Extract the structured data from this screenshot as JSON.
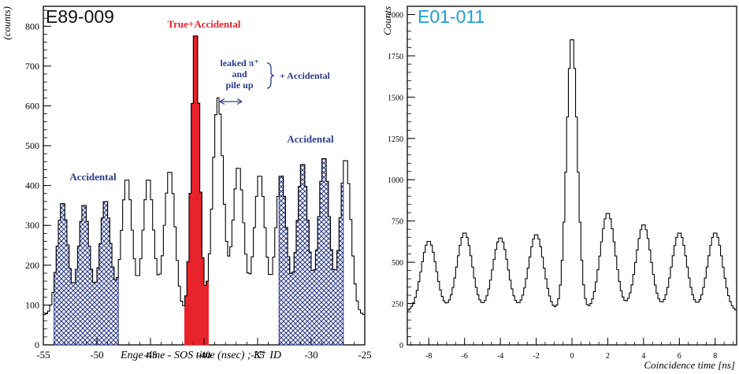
{
  "colors": {
    "frame": "#000000",
    "histogram": "#000000",
    "accidental_fill": "#2b3a8c",
    "true_fill": "#e8232b",
    "true_label": "#e8232b",
    "accidental_label": "#2b3a8c",
    "right_title": "#1aa0d8"
  },
  "chart_data": [
    {
      "type": "histogram",
      "title": "E89-009",
      "xlabel": "Enge time - SOS time (nsec) ; K⁺ ID",
      "ylabel": "(counts)",
      "xlim": [
        -55,
        -25
      ],
      "ylim": [
        0,
        850
      ],
      "x_ticks": [
        -55,
        -50,
        -45,
        -40,
        -35,
        -30,
        -25
      ],
      "y_ticks": [
        0,
        100,
        200,
        300,
        400,
        500,
        600,
        700,
        800
      ],
      "x_tick_labels": [
        "-55",
        "-50",
        "-45",
        "-40",
        "-35",
        "-30",
        "-25"
      ],
      "y_tick_labels": [
        "0",
        "100",
        "200",
        "300",
        "400",
        "500",
        "600",
        "700",
        "800"
      ],
      "baseline": 75,
      "peaks": [
        {
          "x": -53.2,
          "height": 360,
          "sigma": 0.5,
          "group": "accidental-left"
        },
        {
          "x": -51.2,
          "height": 355,
          "sigma": 0.5,
          "group": "accidental-left"
        },
        {
          "x": -49.2,
          "height": 365,
          "sigma": 0.5,
          "group": "accidental-left"
        },
        {
          "x": -47.2,
          "height": 420,
          "sigma": 0.5,
          "group": "none"
        },
        {
          "x": -45.2,
          "height": 420,
          "sigma": 0.5,
          "group": "none"
        },
        {
          "x": -43.2,
          "height": 440,
          "sigma": 0.5,
          "group": "none"
        },
        {
          "x": -40.8,
          "height": 800,
          "sigma": 0.38,
          "group": "true"
        },
        {
          "x": -38.7,
          "height": 620,
          "sigma": 0.5,
          "group": "none"
        },
        {
          "x": -36.8,
          "height": 450,
          "sigma": 0.5,
          "group": "none"
        },
        {
          "x": -34.8,
          "height": 430,
          "sigma": 0.5,
          "group": "none"
        },
        {
          "x": -32.8,
          "height": 430,
          "sigma": 0.5,
          "group": "none"
        },
        {
          "x": -30.8,
          "height": 460,
          "sigma": 0.5,
          "group": "accidental-right"
        },
        {
          "x": -28.8,
          "height": 475,
          "sigma": 0.5,
          "group": "accidental-right"
        },
        {
          "x": -26.8,
          "height": 470,
          "sigma": 0.5,
          "group": "accidental-right"
        }
      ],
      "shaded_regions": [
        {
          "name": "accidental-left",
          "x_range": [
            -54,
            -48
          ],
          "fill": "accidental"
        },
        {
          "name": "true",
          "x_range": [
            -41.8,
            -39.6
          ],
          "fill": "true"
        },
        {
          "name": "accidental-right",
          "x_range": [
            -33,
            -27
          ],
          "fill": "accidental"
        }
      ],
      "annotations": {
        "true_accidental": "True+Accidental",
        "leaked_line1": "leaked π⁺",
        "leaked_line2": "and",
        "leaked_line3": "pile up",
        "plus_accidental": "+ Accidental",
        "accidental_left": "Accidental",
        "accidental_right": "Accidental"
      }
    },
    {
      "type": "histogram",
      "title": "E01-011",
      "xlabel": "Coincidence time [ns]",
      "ylabel": "Counts",
      "xlim": [
        -9.2,
        9.2
      ],
      "ylim": [
        0,
        2050
      ],
      "x_ticks": [
        -8,
        -6,
        -4,
        -2,
        0,
        2,
        4,
        6,
        8
      ],
      "y_ticks": [
        0,
        250,
        500,
        750,
        1000,
        1250,
        1500,
        1750,
        2000
      ],
      "x_tick_labels": [
        "-8",
        "-6",
        "-4",
        "-2",
        "0",
        "2",
        "4",
        "6",
        "8"
      ],
      "y_tick_labels": [
        "0",
        "250",
        "500",
        "750",
        "1000",
        "1250",
        "1500",
        "1750",
        "2000"
      ],
      "baseline": 200,
      "peaks": [
        {
          "x": -8.0,
          "height": 630,
          "sigma": 0.42
        },
        {
          "x": -6.0,
          "height": 680,
          "sigma": 0.42
        },
        {
          "x": -4.0,
          "height": 650,
          "sigma": 0.42
        },
        {
          "x": -2.0,
          "height": 670,
          "sigma": 0.42
        },
        {
          "x": 0.0,
          "height": 1870,
          "sigma": 0.3
        },
        {
          "x": 2.0,
          "height": 800,
          "sigma": 0.42
        },
        {
          "x": 4.0,
          "height": 730,
          "sigma": 0.42
        },
        {
          "x": 6.0,
          "height": 680,
          "sigma": 0.42
        },
        {
          "x": 8.0,
          "height": 680,
          "sigma": 0.42
        }
      ]
    }
  ]
}
